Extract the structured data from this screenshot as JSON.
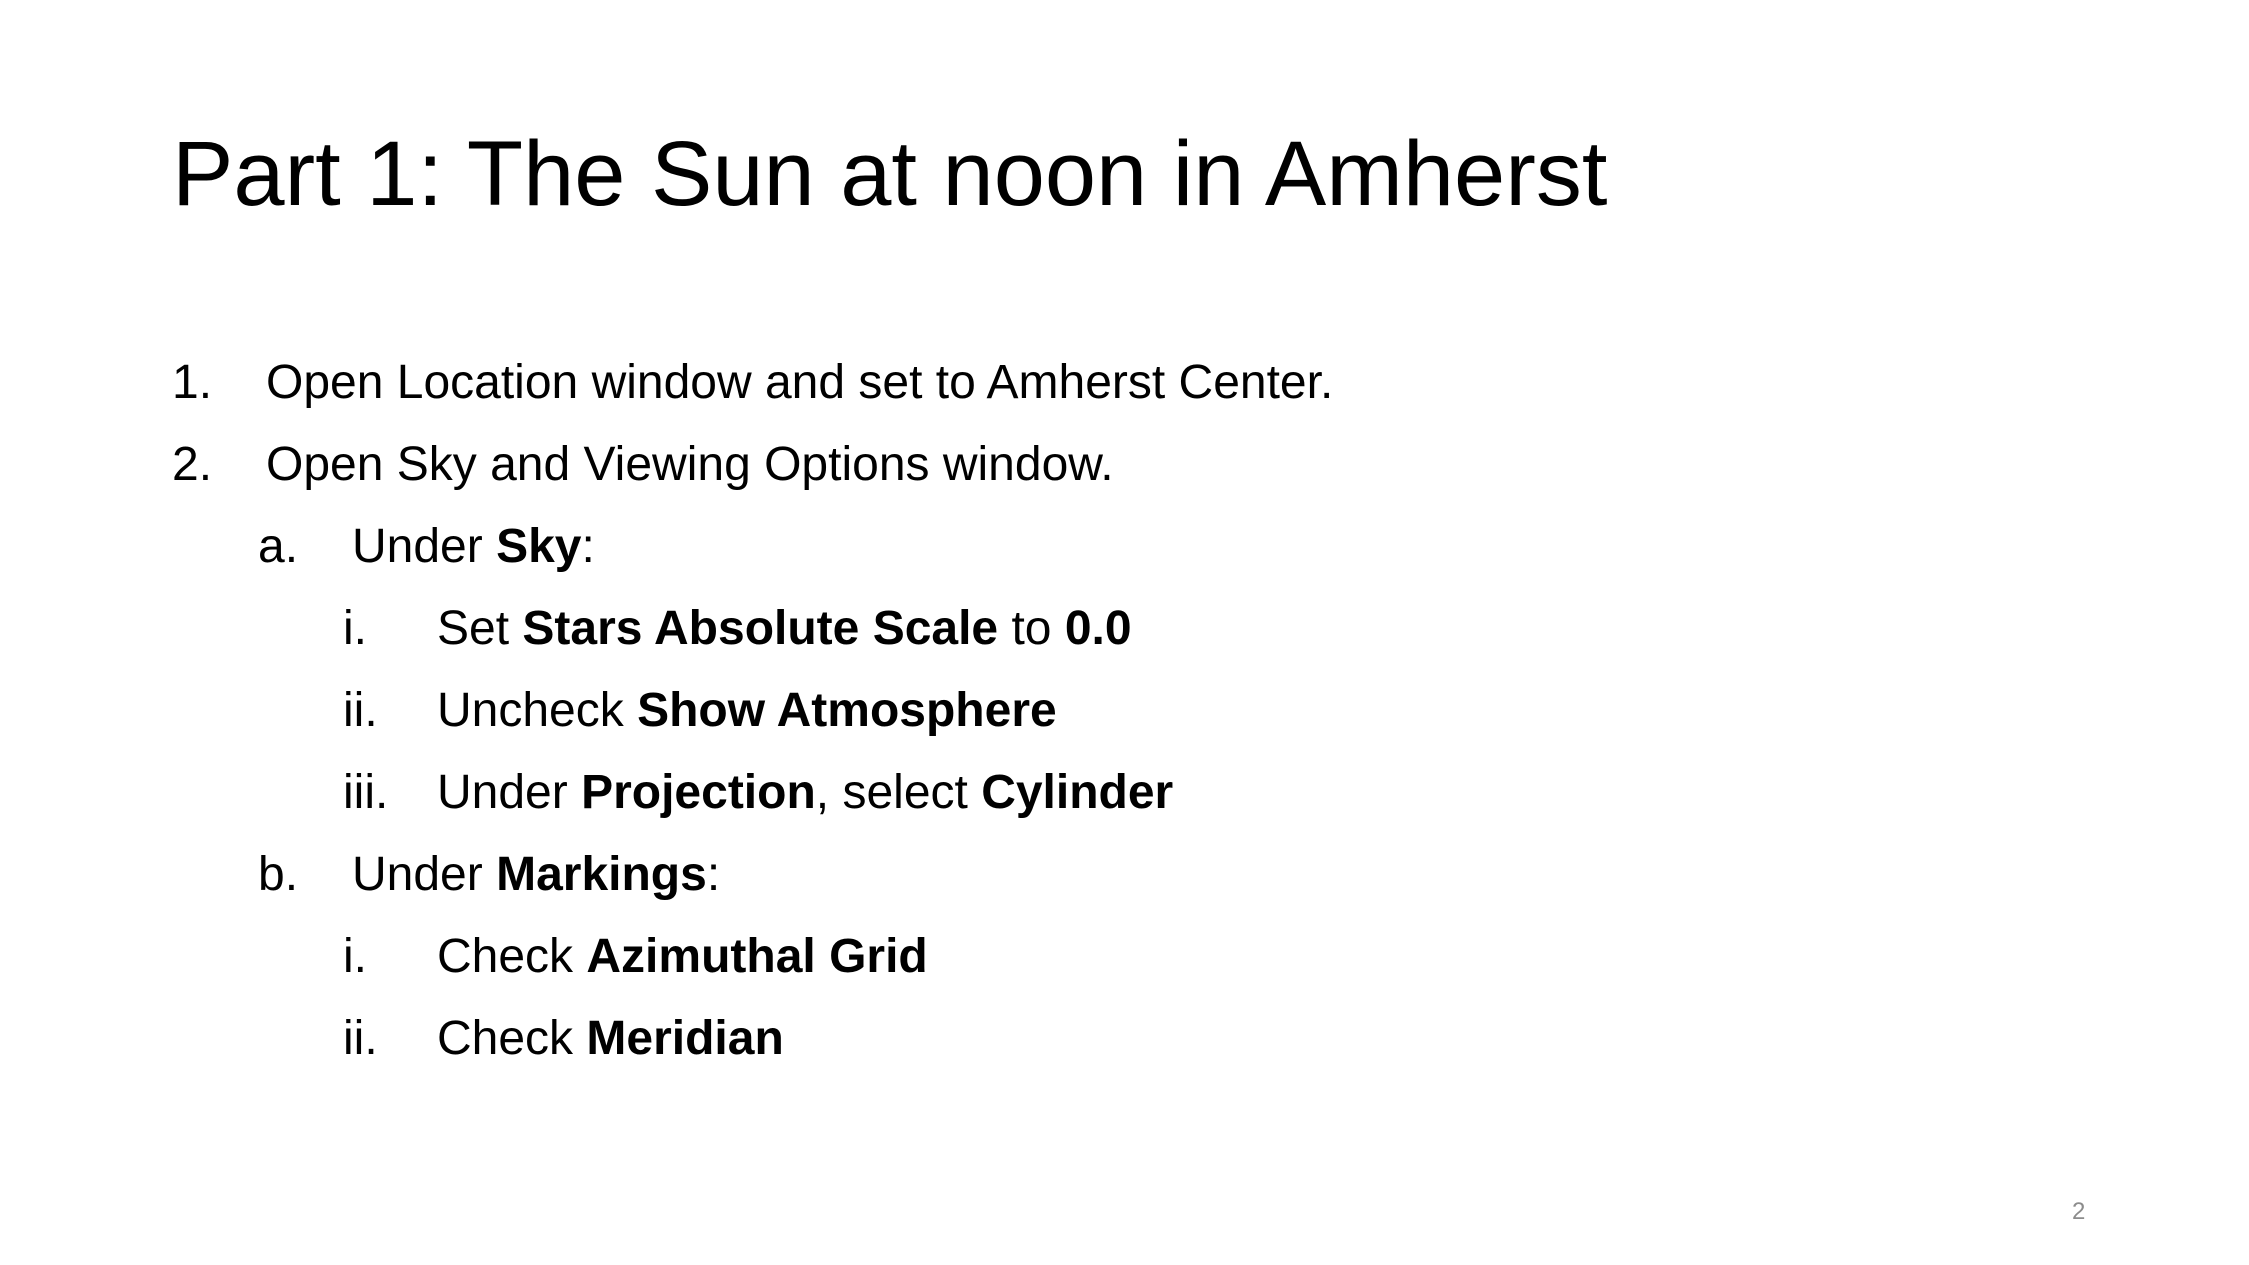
{
  "slide": {
    "title": "Part 1: The Sun at noon in Amherst",
    "page_number": "2",
    "steps": [
      {
        "marker": "1.",
        "text": "Open Location window and set to Amherst Center."
      },
      {
        "marker": "2.",
        "text": "Open Sky and Viewing Options window."
      }
    ],
    "sky": {
      "marker": "a.",
      "prefix": "Under ",
      "bold": "Sky",
      "suffix": ":",
      "items": [
        {
          "marker": "i.",
          "pre": "Set ",
          "bold1": "Stars Absolute Scale",
          "mid": " to ",
          "bold2": "0.0"
        },
        {
          "marker": "ii.",
          "pre": "Uncheck ",
          "bold1": "Show Atmosphere"
        },
        {
          "marker": "iii.",
          "pre": "Under ",
          "bold1": "Projection",
          "mid": ", select ",
          "bold2": "Cylinder"
        }
      ]
    },
    "markings": {
      "marker": "b.",
      "prefix": "Under ",
      "bold": "Markings",
      "suffix": ":",
      "items": [
        {
          "marker": "i.",
          "pre": "Check ",
          "bold1": "Azimuthal Grid"
        },
        {
          "marker": "ii.",
          "pre": "Check ",
          "bold1": "Meridian"
        }
      ]
    }
  }
}
